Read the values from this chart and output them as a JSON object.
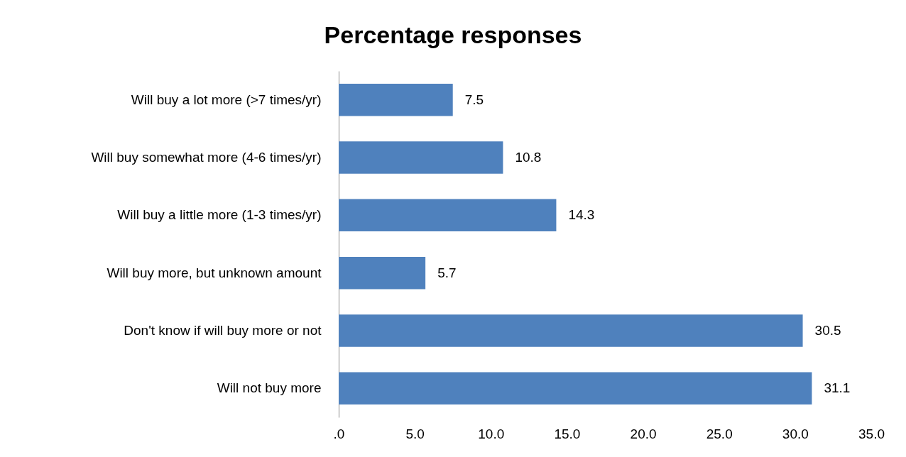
{
  "chart_data": {
    "type": "bar",
    "title": "Percentage responses",
    "orientation": "horizontal",
    "categories": [
      "Will buy a lot more (>7 times/yr)",
      "Will buy somewhat more (4-6 times/yr)",
      "Will buy a little more (1-3 times/yr)",
      "Will buy more, but unknown amount",
      "Don't know if will buy more or not",
      "Will not buy more"
    ],
    "values": [
      7.5,
      10.8,
      14.3,
      5.7,
      30.5,
      31.1
    ],
    "color": "#4f81bd",
    "data_labels": true,
    "grid": false,
    "xlim": [
      0,
      35
    ],
    "xticks": [
      {
        "value": 0,
        "label": ".0"
      },
      {
        "value": 5,
        "label": "5.0"
      },
      {
        "value": 10,
        "label": "10.0"
      },
      {
        "value": 15,
        "label": "15.0"
      },
      {
        "value": 20,
        "label": "20.0"
      },
      {
        "value": 25,
        "label": "25.0"
      },
      {
        "value": 30,
        "label": "30.0"
      },
      {
        "value": 35,
        "label": "35.0"
      }
    ]
  }
}
